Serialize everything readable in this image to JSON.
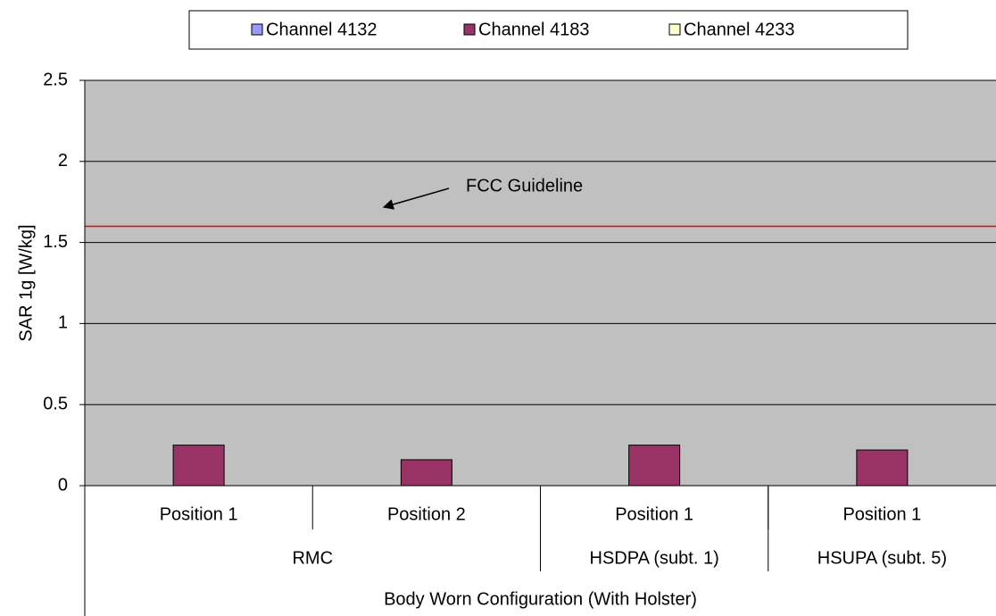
{
  "chart_data": {
    "type": "bar",
    "ylabel": "SAR 1g [W/kg]",
    "categories": [
      "Position 1",
      "Position 2",
      "Position 1",
      "Position 1"
    ],
    "category_groups": [
      {
        "label": "RMC",
        "span": 2
      },
      {
        "label": "HSDPA (subt. 1)",
        "span": 1
      },
      {
        "label": "HSUPA (subt. 5)",
        "span": 1
      }
    ],
    "category_super_group": "Body Worn Configuration (With Holster)",
    "series": [
      {
        "name": "Channel 4132",
        "color": "#9999ff",
        "values": [
          null,
          null,
          null,
          null
        ]
      },
      {
        "name": "Channel 4183",
        "color": "#993366",
        "values": [
          0.25,
          0.16,
          0.25,
          0.22
        ]
      },
      {
        "name": "Channel 4233",
        "color": "#ffffcc",
        "values": [
          null,
          null,
          null,
          null
        ]
      }
    ],
    "ylim": [
      0,
      2.5
    ],
    "yticks": [
      0,
      0.5,
      1,
      1.5,
      2,
      2.5
    ],
    "grid": true,
    "plot_background": "#c0c0c0",
    "reference_line": {
      "value": 1.6,
      "color": "#ff0000",
      "label": "FCC Guideline"
    },
    "legend": "top"
  }
}
